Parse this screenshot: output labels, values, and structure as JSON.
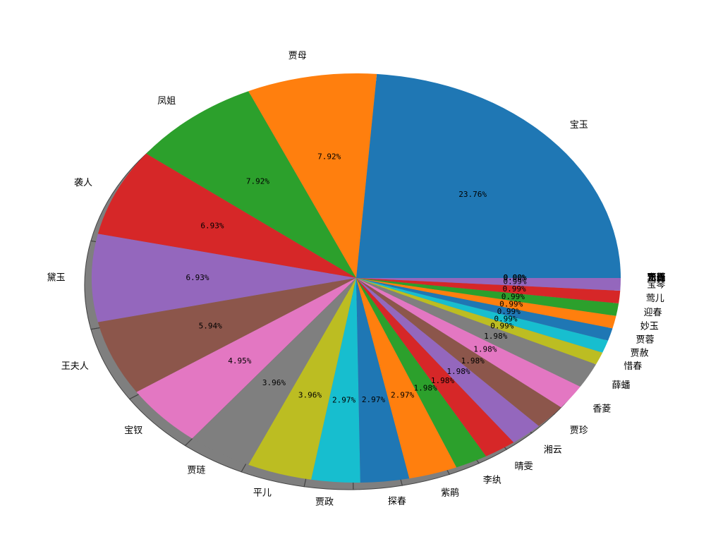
{
  "chart_data": {
    "type": "pie",
    "shadow": true,
    "start_angle_deg": 0,
    "direction": "counterclockwise",
    "slices": [
      {
        "label": "宝玉",
        "value": 23.76,
        "pct_label": "23.76%",
        "color": "#1f77b4"
      },
      {
        "label": "贾母",
        "value": 7.92,
        "pct_label": "7.92%",
        "color": "#ff7f0e"
      },
      {
        "label": "凤姐",
        "value": 7.92,
        "pct_label": "7.92%",
        "color": "#2ca02c"
      },
      {
        "label": "袭人",
        "value": 6.93,
        "pct_label": "6.93%",
        "color": "#d62728"
      },
      {
        "label": "黛玉",
        "value": 6.93,
        "pct_label": "6.93%",
        "color": "#9467bd"
      },
      {
        "label": "王夫人",
        "value": 5.94,
        "pct_label": "5.94%",
        "color": "#8c564b"
      },
      {
        "label": "宝钗",
        "value": 4.95,
        "pct_label": "4.95%",
        "color": "#e377c2"
      },
      {
        "label": "贾琏",
        "value": 3.96,
        "pct_label": "3.96%",
        "color": "#7f7f7f"
      },
      {
        "label": "平儿",
        "value": 3.96,
        "pct_label": "3.96%",
        "color": "#bcbd22"
      },
      {
        "label": "贾政",
        "value": 2.97,
        "pct_label": "2.97%",
        "color": "#17becf"
      },
      {
        "label": "探春",
        "value": 2.97,
        "pct_label": "2.97%",
        "color": "#1f77b4"
      },
      {
        "label": "紫鹃",
        "value": 2.97,
        "pct_label": "2.97%",
        "color": "#ff7f0e"
      },
      {
        "label": "李纨",
        "value": 1.98,
        "pct_label": "1.98%",
        "color": "#2ca02c"
      },
      {
        "label": "晴雯",
        "value": 1.98,
        "pct_label": "1.98%",
        "color": "#d62728"
      },
      {
        "label": "湘云",
        "value": 1.98,
        "pct_label": "1.98%",
        "color": "#9467bd"
      },
      {
        "label": "贾珍",
        "value": 1.98,
        "pct_label": "1.98%",
        "color": "#8c564b"
      },
      {
        "label": "香菱",
        "value": 1.98,
        "pct_label": "1.98%",
        "color": "#e377c2"
      },
      {
        "label": "薛蟠",
        "value": 1.98,
        "pct_label": "1.98%",
        "color": "#7f7f7f"
      },
      {
        "label": "惜春",
        "value": 0.99,
        "pct_label": "0.99%",
        "color": "#bcbd22"
      },
      {
        "label": "贾赦",
        "value": 0.99,
        "pct_label": "0.99%",
        "color": "#17becf"
      },
      {
        "label": "贾蓉",
        "value": 0.99,
        "pct_label": "0.99%",
        "color": "#1f77b4"
      },
      {
        "label": "妙玉",
        "value": 0.99,
        "pct_label": "0.99%",
        "color": "#ff7f0e"
      },
      {
        "label": "迎春",
        "value": 0.99,
        "pct_label": "0.99%",
        "color": "#2ca02c"
      },
      {
        "label": "莺儿",
        "value": 0.99,
        "pct_label": "0.99%",
        "color": "#d62728"
      },
      {
        "label": "宝琴",
        "value": 0.99,
        "pct_label": "0.99%",
        "color": "#9467bd"
      },
      {
        "label": "贾蔷",
        "value": 0.0,
        "pct_label": "0.00%",
        "color": "#8c564b"
      },
      {
        "label": "贾环",
        "value": 0.0,
        "pct_label": "0.00%",
        "color": "#e377c2"
      },
      {
        "label": "尤氏",
        "value": 0.0,
        "pct_label": "0.00%",
        "color": "#7f7f7f"
      },
      {
        "label": "元春",
        "value": 0.0,
        "pct_label": "0.00%",
        "color": "#bcbd22"
      },
      {
        "label": "巧姐",
        "value": 0.0,
        "pct_label": "0.00%",
        "color": "#17becf"
      }
    ]
  }
}
